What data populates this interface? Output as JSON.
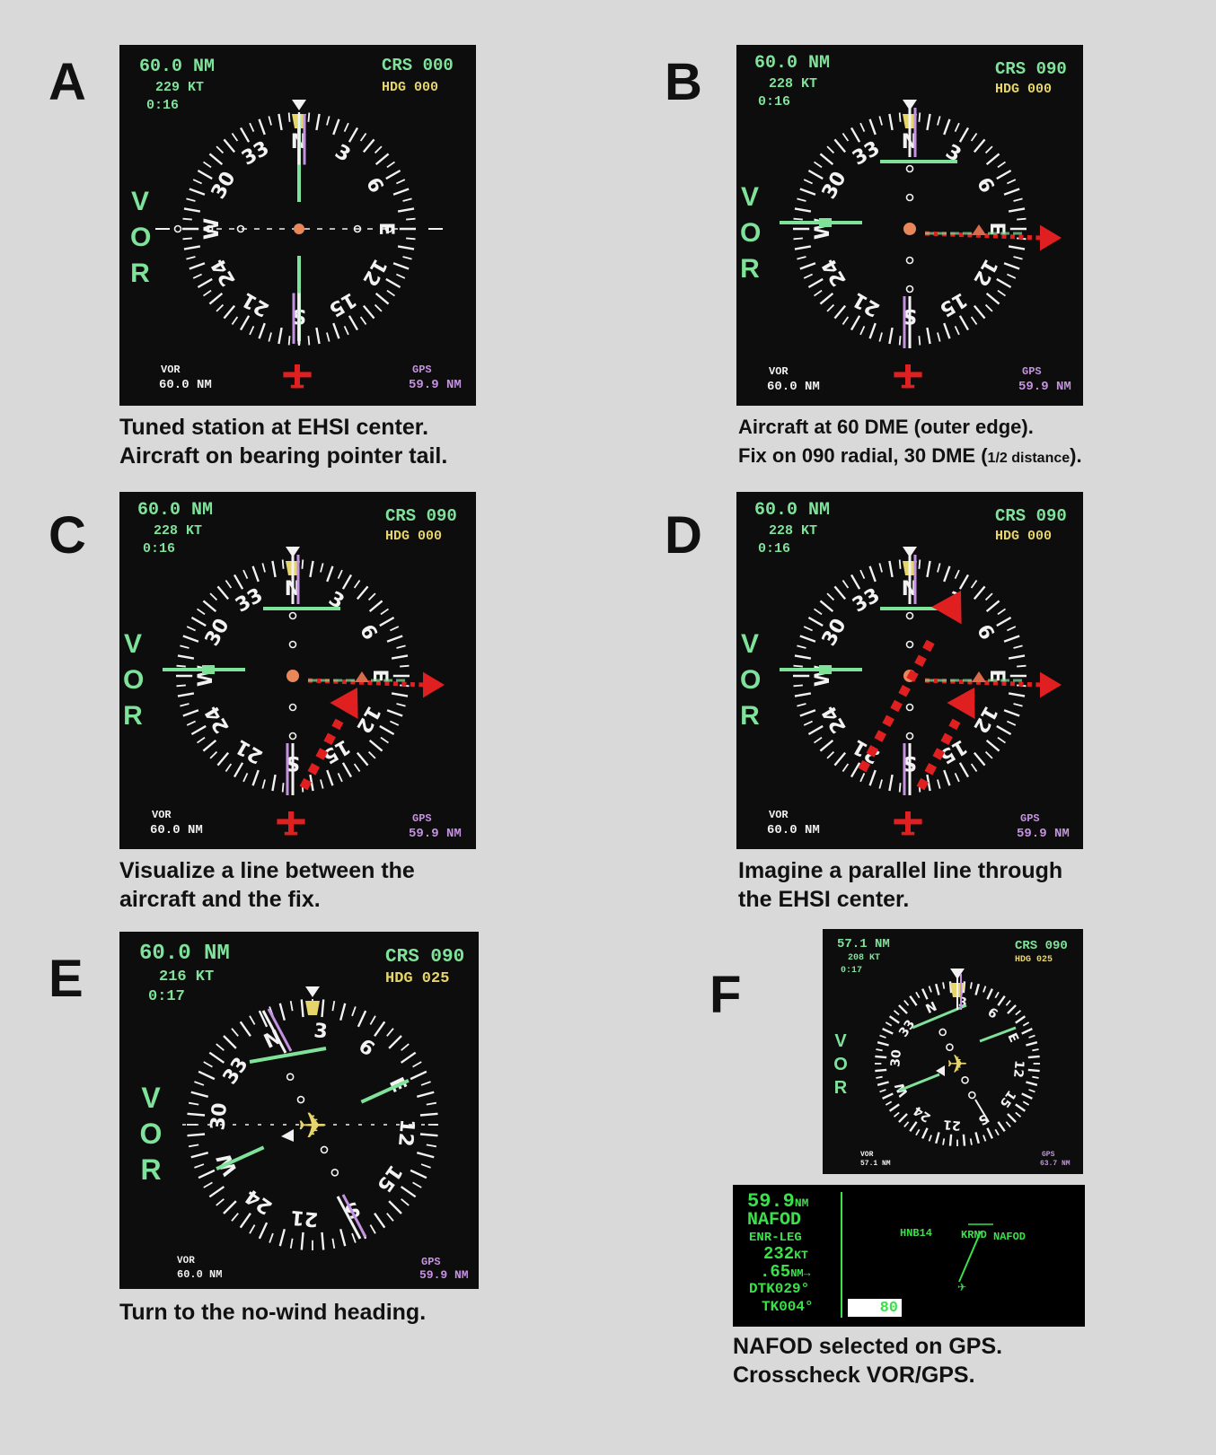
{
  "panels": {
    "A": {
      "letter": "A",
      "dist": "60.0 NM",
      "speed": "229 KT",
      "time": "0:16",
      "crs": "CRS 000",
      "hdg": "HDG 000",
      "vor_label": "VOR",
      "vor_dist": "60.0 NM",
      "gps_label": "GPS",
      "gps_dist": "59.9 NM",
      "nav": "VOR",
      "caption1": "Tuned station at EHSI center.",
      "caption2": "Aircraft on bearing pointer tail."
    },
    "B": {
      "letter": "B",
      "dist": "60.0 NM",
      "speed": "228 KT",
      "time": "0:16",
      "crs": "CRS 090",
      "hdg": "HDG 000",
      "vor_label": "VOR",
      "vor_dist": "60.0 NM",
      "gps_label": "GPS",
      "gps_dist": "59.9 NM",
      "nav": "VOR",
      "caption1": "Aircraft at 60 DME (outer edge).",
      "caption2_a": "Fix on 090 radial, 30 DME (",
      "caption2_b": "1/2 distance",
      "caption2_c": ")."
    },
    "C": {
      "letter": "C",
      "dist": "60.0 NM",
      "speed": "228 KT",
      "time": "0:16",
      "crs": "CRS 090",
      "hdg": "HDG 000",
      "vor_label": "VOR",
      "vor_dist": "60.0 NM",
      "gps_label": "GPS",
      "gps_dist": "59.9 NM",
      "nav": "VOR",
      "caption1": "Visualize a line between the",
      "caption2": "aircraft and the fix."
    },
    "D": {
      "letter": "D",
      "dist": "60.0 NM",
      "speed": "228 KT",
      "time": "0:16",
      "crs": "CRS 090",
      "hdg": "HDG 000",
      "vor_label": "VOR",
      "vor_dist": "60.0 NM",
      "gps_label": "GPS",
      "gps_dist": "59.9 NM",
      "nav": "VOR",
      "caption1": "Imagine a parallel line through",
      "caption2": "the EHSI center."
    },
    "E": {
      "letter": "E",
      "dist": "60.0 NM",
      "speed": "216 KT",
      "time": "0:17",
      "crs": "CRS 090",
      "hdg": "HDG 025",
      "vor_label": "VOR",
      "vor_dist": "60.0 NM",
      "gps_label": "GPS",
      "gps_dist": "59.9 NM",
      "nav": "VOR",
      "caption1": "Turn to the no-wind heading."
    },
    "F": {
      "letter": "F",
      "dist": "57.1 NM",
      "speed": "208 KT",
      "time": "0:17",
      "crs": "CRS 090",
      "hdg": "HDG 025",
      "vor_label": "VOR",
      "vor_dist": "57.1 NM",
      "gps_label": "GPS",
      "gps_dist": "63.7 NM",
      "nav": "VOR",
      "caption1": "NAFOD selected on GPS.",
      "caption2": "Crosscheck VOR/GPS."
    }
  },
  "compass_labels": [
    "N",
    "3",
    "6",
    "E",
    "12",
    "15",
    "S",
    "21",
    "24",
    "W",
    "30",
    "33"
  ],
  "gps_display": {
    "dist": "59.9",
    "dist_unit": "NM",
    "waypoint": "NAFOD",
    "mode": "ENR-LEG",
    "gs": "232",
    "gs_unit": "KT",
    "xtk": ".65",
    "xtk_unit": "NM",
    "dtk": "DTK029°",
    "tk": "TK004°",
    "box_value": "80",
    "map_label_1": "HNB14",
    "map_label_2": "KRND",
    "map_label_3": "NAFOD"
  },
  "colors": {
    "background": "#d9d9d9",
    "screen": "#0d0d0d",
    "green": "#7fe29a",
    "yellow": "#e6d56a",
    "magenta": "#c493e0",
    "red": "#e02020",
    "gps_green": "#3be04a"
  }
}
